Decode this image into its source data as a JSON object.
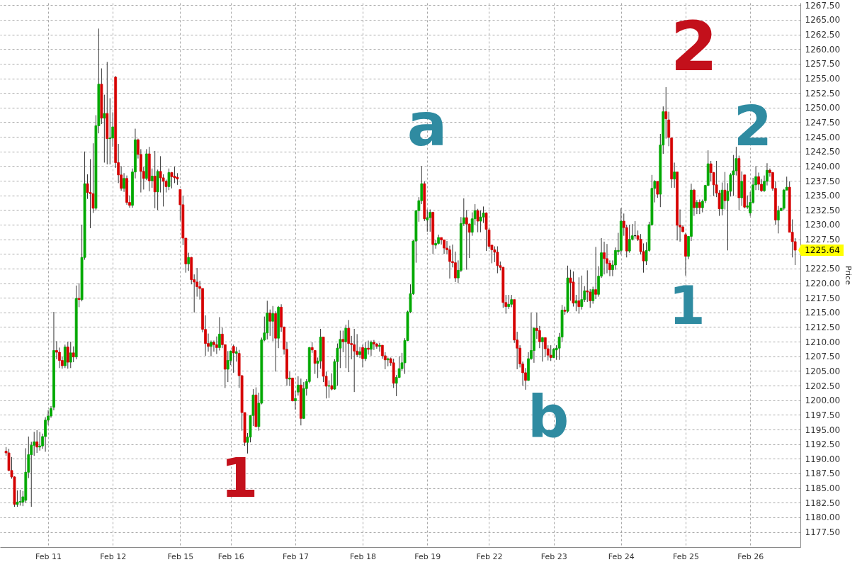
{
  "chart_data": {
    "type": "candlestick",
    "ylabel": "Price",
    "ylim": [
      1174.9,
      1267.9
    ],
    "yticks": [
      {
        "value": 1177.5,
        "label": "1177.50"
      },
      {
        "value": 1180,
        "label": "1180.00"
      },
      {
        "value": 1182.5,
        "label": "1182.50"
      },
      {
        "value": 1185,
        "label": "1185.00"
      },
      {
        "value": 1187.5,
        "label": "1187.50"
      },
      {
        "value": 1190,
        "label": "1190.00"
      },
      {
        "value": 1192.5,
        "label": "1192.50"
      },
      {
        "value": 1195,
        "label": "1195.00"
      },
      {
        "value": 1197.5,
        "label": "1197.50"
      },
      {
        "value": 1200,
        "label": "1200.00"
      },
      {
        "value": 1202.5,
        "label": "1202.50"
      },
      {
        "value": 1205,
        "label": "1205.00"
      },
      {
        "value": 1207.5,
        "label": "1207.50"
      },
      {
        "value": 1210,
        "label": "1210.00"
      },
      {
        "value": 1212.5,
        "label": "1212.50"
      },
      {
        "value": 1215,
        "label": "1215.00"
      },
      {
        "value": 1217.5,
        "label": "1217.50"
      },
      {
        "value": 1220,
        "label": "1220.00"
      },
      {
        "value": 1222.5,
        "label": "1222.50"
      },
      {
        "value": 1225,
        "label": null
      },
      {
        "value": 1227.5,
        "label": "1227.50"
      },
      {
        "value": 1230,
        "label": "1230.00"
      },
      {
        "value": 1232.5,
        "label": "1232.50"
      },
      {
        "value": 1235,
        "label": "1235.00"
      },
      {
        "value": 1237.5,
        "label": "1237.50"
      },
      {
        "value": 1240,
        "label": "1240.00"
      },
      {
        "value": 1242.5,
        "label": "1242.50"
      },
      {
        "value": 1245,
        "label": "1245.00"
      },
      {
        "value": 1247.5,
        "label": "1247.50"
      },
      {
        "value": 1250,
        "label": "1250.00"
      },
      {
        "value": 1252.5,
        "label": "1252.50"
      },
      {
        "value": 1255,
        "label": "1255.00"
      },
      {
        "value": 1257.5,
        "label": "1257.50"
      },
      {
        "value": 1260,
        "label": "1260.00"
      },
      {
        "value": 1262.5,
        "label": "1262.50"
      },
      {
        "value": 1265,
        "label": "1265.00"
      },
      {
        "value": 1267.5,
        "label": "1267.50"
      }
    ],
    "grid": true,
    "categories": [
      null,
      null,
      null,
      null,
      null,
      null,
      null,
      null,
      null,
      null,
      null,
      null,
      null,
      null,
      null,
      "Feb 11",
      null,
      null,
      null,
      null,
      null,
      null,
      null,
      null,
      null,
      null,
      null,
      null,
      null,
      null,
      null,
      null,
      null,
      null,
      null,
      null,
      null,
      null,
      "Feb 12",
      null,
      null,
      null,
      null,
      null,
      null,
      null,
      null,
      null,
      null,
      null,
      null,
      null,
      null,
      null,
      null,
      null,
      null,
      null,
      null,
      null,
      null,
      null,
      "Feb 15",
      null,
      null,
      null,
      null,
      null,
      null,
      null,
      null,
      null,
      null,
      null,
      null,
      null,
      null,
      null,
      null,
      null,
      "Feb 16",
      null,
      null,
      null,
      null,
      null,
      null,
      null,
      null,
      null,
      null,
      null,
      null,
      null,
      null,
      null,
      null,
      null,
      null,
      null,
      null,
      null,
      null,
      "Feb 17",
      null,
      null,
      null,
      null,
      null,
      null,
      null,
      null,
      null,
      null,
      null,
      null,
      null,
      null,
      null,
      null,
      null,
      null,
      null,
      null,
      null,
      null,
      null,
      "Feb 18",
      null,
      null,
      null,
      null,
      null,
      null,
      null,
      null,
      null,
      null,
      null,
      null,
      null,
      null,
      null,
      null,
      null,
      null,
      null,
      null,
      null,
      null,
      "Feb 19",
      null,
      null,
      null,
      null,
      null,
      null,
      null,
      null,
      null,
      null,
      null,
      null,
      null,
      null,
      null,
      null,
      null,
      null,
      null,
      null,
      null,
      "Feb 22",
      null,
      null,
      null,
      null,
      null,
      null,
      null,
      null,
      null,
      null,
      null,
      null,
      null,
      null,
      null,
      null,
      null,
      null,
      null,
      null,
      null,
      null,
      "Feb 23",
      null,
      null,
      null,
      null,
      null,
      null,
      null,
      null,
      null,
      null,
      null,
      null,
      null,
      null,
      null,
      null,
      null,
      null,
      null,
      null,
      null,
      null,
      null,
      "Feb 24",
      null,
      null,
      null,
      null,
      null,
      null,
      null,
      null,
      null,
      null,
      null,
      null,
      null,
      null,
      null,
      null,
      null,
      null,
      null,
      null,
      null,
      null,
      "Feb 25",
      null,
      null,
      null,
      null,
      null,
      null,
      null,
      null,
      null,
      null,
      null,
      null,
      null,
      null,
      null,
      null,
      null,
      null,
      null,
      null,
      null,
      null,
      "Feb 26",
      null,
      null,
      null,
      null,
      null,
      null,
      null,
      null,
      null,
      null,
      null,
      null,
      null,
      null,
      null,
      null
    ],
    "ohlc": [
      [
        1191.3,
        1192.0,
        1190.5,
        1191.0
      ],
      [
        1191.0,
        1191.7,
        1187.9,
        1188.0
      ],
      [
        1188.0,
        1190.3,
        1186.6,
        1186.9
      ],
      [
        1186.9,
        1187.0,
        1181.8,
        1182.2
      ],
      [
        1182.2,
        1184.6,
        1181.8,
        1182.6
      ],
      [
        1182.6,
        1184.7,
        1182.0,
        1182.7
      ],
      [
        1182.6,
        1184.5,
        1181.9,
        1183.5
      ],
      [
        1182.9,
        1191.8,
        1182.5,
        1187.7
      ],
      [
        1187.7,
        1193.8,
        1186.7,
        1190.7
      ],
      [
        1190.7,
        1192.9,
        1181.8,
        1192.3
      ],
      [
        1192.3,
        1194.6,
        1190.5,
        1192.9
      ],
      [
        1192.9,
        1194.9,
        1191.0,
        1192.0
      ],
      [
        1192.0,
        1194.6,
        1191.4,
        1192.2
      ],
      [
        1192.2,
        1194.3,
        1191.7,
        1193.8
      ],
      [
        1193.8,
        1197.1,
        1191.2,
        1196.6
      ],
      [
        1196.6,
        1198.3,
        1195.8,
        1197.3
      ],
      [
        1197.3,
        1199.0,
        1197.0,
        1198.6
      ],
      [
        1198.8,
        1215.1,
        1198.3,
        1208.5
      ],
      [
        1208.5,
        1210.1,
        1207.0,
        1208.2
      ],
      [
        1208.2,
        1209.0,
        1205.5,
        1206.8
      ],
      [
        1206.8,
        1207.5,
        1205.4,
        1205.9
      ],
      [
        1205.9,
        1209.5,
        1205.5,
        1209.1
      ],
      [
        1209.1,
        1210.0,
        1205.4,
        1206.5
      ],
      [
        1206.5,
        1210.0,
        1205.5,
        1208.1
      ],
      [
        1208.1,
        1209.2,
        1206.5,
        1207.4
      ],
      [
        1207.4,
        1219.6,
        1207.0,
        1217.4
      ],
      [
        1217.4,
        1220.0,
        1215.9,
        1217.2
      ],
      [
        1217.2,
        1230.0,
        1216.9,
        1224.4
      ],
      [
        1224.4,
        1242.5,
        1224.0,
        1237.0
      ],
      [
        1237.0,
        1238.6,
        1234.4,
        1235.5
      ],
      [
        1235.5,
        1241.2,
        1229.4,
        1235.3
      ],
      [
        1235.3,
        1243.9,
        1232.0,
        1232.8
      ],
      [
        1232.8,
        1248.7,
        1232.4,
        1246.9
      ],
      [
        1246.9,
        1263.5,
        1245.6,
        1254.0
      ],
      [
        1254.0,
        1256.7,
        1247.2,
        1248.2
      ],
      [
        1248.2,
        1252.2,
        1240.6,
        1249.0
      ],
      [
        1249.0,
        1257.8,
        1240.3,
        1244.7
      ],
      [
        1244.7,
        1251.6,
        1240.3,
        1244.8
      ],
      [
        1244.8,
        1249.2,
        1243.3,
        1246.7
      ],
      [
        1255.2,
        1255.4,
        1239.7,
        1240.6
      ],
      [
        1240.6,
        1243.8,
        1237.1,
        1238.5
      ],
      [
        1238.5,
        1240.0,
        1235.8,
        1236.2
      ],
      [
        1236.2,
        1238.8,
        1235.6,
        1237.9
      ],
      [
        1237.9,
        1238.4,
        1233.4,
        1233.8
      ],
      [
        1233.8,
        1235.0,
        1232.9,
        1233.3
      ],
      [
        1233.3,
        1239.6,
        1232.9,
        1239.0
      ],
      [
        1239.0,
        1246.4,
        1237.9,
        1244.5
      ],
      [
        1244.5,
        1244.7,
        1241.3,
        1242.0
      ],
      [
        1242.0,
        1242.9,
        1235.5,
        1239.1
      ],
      [
        1239.1,
        1239.9,
        1236.0,
        1237.9
      ],
      [
        1237.9,
        1242.9,
        1237.6,
        1242.1
      ],
      [
        1242.1,
        1243.3,
        1235.7,
        1237.5
      ],
      [
        1237.5,
        1239.6,
        1236.3,
        1238.3
      ],
      [
        1238.3,
        1242.6,
        1232.8,
        1235.6
      ],
      [
        1235.6,
        1239.4,
        1232.5,
        1239.1
      ],
      [
        1239.1,
        1241.7,
        1235.5,
        1238.0
      ],
      [
        1238.0,
        1238.6,
        1233.1,
        1237.4
      ],
      [
        1237.4,
        1237.7,
        1235.5,
        1236.5
      ],
      [
        1236.5,
        1239.6,
        1235.9,
        1238.9
      ],
      [
        1238.9,
        1239.0,
        1236.2,
        1238.2
      ],
      [
        1238.3,
        1239.9,
        1237.1,
        1238.0
      ],
      [
        1238.1,
        1238.8,
        1236.8,
        1237.8
      ],
      [
        1236.0,
        1236.0,
        1230.7,
        1233.4
      ],
      [
        1233.4,
        1234.9,
        1226.5,
        1227.7
      ],
      [
        1227.7,
        1227.7,
        1221.8,
        1223.3
      ],
      [
        1223.3,
        1225.2,
        1222.1,
        1224.4
      ],
      [
        1224.4,
        1224.5,
        1219.8,
        1220.6
      ],
      [
        1220.6,
        1221.5,
        1215.0,
        1220.2
      ],
      [
        1220.2,
        1222.6,
        1217.7,
        1219.4
      ],
      [
        1219.4,
        1220.4,
        1217.2,
        1219.1
      ],
      [
        1219.1,
        1219.1,
        1211.6,
        1212.1
      ],
      [
        1212.1,
        1214.5,
        1207.6,
        1209.7
      ],
      [
        1209.7,
        1211.4,
        1208.3,
        1209.2
      ],
      [
        1209.2,
        1210.2,
        1207.5,
        1209.9
      ],
      [
        1209.9,
        1210.2,
        1208.3,
        1209.5
      ],
      [
        1209.5,
        1210.9,
        1207.9,
        1209.0
      ],
      [
        1209.0,
        1214.2,
        1208.5,
        1211.3
      ],
      [
        1211.3,
        1212.4,
        1208.9,
        1209.5
      ],
      [
        1209.5,
        1209.5,
        1202.1,
        1205.3
      ],
      [
        1205.3,
        1208.4,
        1203.1,
        1206.8
      ],
      [
        1206.8,
        1208.5,
        1206.0,
        1208.4
      ],
      [
        1209.2,
        1209.5,
        1204.7,
        1208.1
      ],
      [
        1208.0,
        1209.1,
        1206.6,
        1208.3
      ],
      [
        1208.0,
        1208.6,
        1202.1,
        1204.2
      ],
      [
        1204.2,
        1204.3,
        1194.8,
        1197.9
      ],
      [
        1197.9,
        1197.9,
        1192.2,
        1192.8
      ],
      [
        1192.8,
        1194.4,
        1190.9,
        1193.7
      ],
      [
        1193.7,
        1197.4,
        1192.8,
        1197.4
      ],
      [
        1197.4,
        1201.9,
        1195.6,
        1200.9
      ],
      [
        1200.9,
        1202.2,
        1195.4,
        1195.5
      ],
      [
        1195.5,
        1201.3,
        1194.8,
        1199.5
      ],
      [
        1199.5,
        1210.7,
        1199.3,
        1210.3
      ],
      [
        1210.3,
        1214.3,
        1210.1,
        1211.5
      ],
      [
        1211.5,
        1217.0,
        1210.4,
        1214.9
      ],
      [
        1214.9,
        1215.5,
        1211.0,
        1213.5
      ],
      [
        1213.5,
        1216.1,
        1210.1,
        1214.8
      ],
      [
        1214.8,
        1215.2,
        1204.9,
        1210.6
      ],
      [
        1210.6,
        1216.1,
        1208.9,
        1215.9
      ],
      [
        1215.9,
        1216.4,
        1211.7,
        1212.5
      ],
      [
        1212.5,
        1212.6,
        1207.8,
        1208.7
      ],
      [
        1208.7,
        1210.0,
        1202.5,
        1203.7
      ],
      [
        1203.6,
        1204.9,
        1202.5,
        1203.8
      ],
      [
        1203.8,
        1203.8,
        1199.8,
        1199.9
      ],
      [
        1199.9,
        1201.6,
        1198.4,
        1200.3
      ],
      [
        1201.4,
        1204.1,
        1200.8,
        1202.6
      ],
      [
        1202.6,
        1203.7,
        1195.7,
        1196.9
      ],
      [
        1196.9,
        1203.1,
        1196.8,
        1202.0
      ],
      [
        1202.0,
        1203.6,
        1200.8,
        1203.2
      ],
      [
        1203.2,
        1209.1,
        1202.9,
        1209.0
      ],
      [
        1209.0,
        1209.9,
        1208.1,
        1208.6
      ],
      [
        1208.5,
        1208.5,
        1204.5,
        1206.3
      ],
      [
        1206.3,
        1207.3,
        1203.8,
        1206.7
      ],
      [
        1206.7,
        1212.2,
        1205.4,
        1210.8
      ],
      [
        1210.8,
        1210.8,
        1203.1,
        1204.1
      ],
      [
        1204.1,
        1204.9,
        1200.3,
        1202.4
      ],
      [
        1202.4,
        1203.4,
        1200.4,
        1202.5
      ],
      [
        1202.5,
        1204.6,
        1201.7,
        1201.9
      ],
      [
        1201.9,
        1207.0,
        1201.8,
        1206.6
      ],
      [
        1206.6,
        1209.7,
        1202.5,
        1208.9
      ],
      [
        1208.9,
        1211.9,
        1205.5,
        1210.4
      ],
      [
        1210.4,
        1211.9,
        1208.2,
        1210.0
      ],
      [
        1210.0,
        1212.9,
        1205.5,
        1212.3
      ],
      [
        1212.3,
        1213.7,
        1204.8,
        1209.7
      ],
      [
        1209.7,
        1211.0,
        1207.0,
        1209.5
      ],
      [
        1209.5,
        1212.2,
        1201.4,
        1208.4
      ],
      [
        1208.4,
        1211.3,
        1207.4,
        1207.8
      ],
      [
        1207.8,
        1209.1,
        1207.2,
        1208.3
      ],
      [
        1209.0,
        1209.5,
        1205.6,
        1207.1
      ],
      [
        1207.1,
        1209.9,
        1206.7,
        1208.9
      ],
      [
        1208.9,
        1210.2,
        1207.8,
        1208.7
      ],
      [
        1208.7,
        1210.2,
        1207.6,
        1209.9
      ],
      [
        1209.9,
        1210.3,
        1208.6,
        1209.6
      ],
      [
        1209.6,
        1209.8,
        1208.8,
        1209.2
      ],
      [
        1209.2,
        1209.8,
        1208.3,
        1209.4
      ],
      [
        1209.4,
        1209.4,
        1207.1,
        1207.6
      ],
      [
        1207.6,
        1208.2,
        1205.3,
        1206.9
      ],
      [
        1206.9,
        1207.3,
        1205.8,
        1207.1
      ],
      [
        1207.1,
        1207.3,
        1205.9,
        1206.4
      ],
      [
        1206.4,
        1207.1,
        1202.1,
        1202.9
      ],
      [
        1202.9,
        1204.3,
        1200.7,
        1203.9
      ],
      [
        1203.9,
        1207.5,
        1203.8,
        1205.4
      ],
      [
        1205.4,
        1208.1,
        1205.0,
        1206.4
      ],
      [
        1206.4,
        1210.6,
        1204.5,
        1210.2
      ],
      [
        1210.2,
        1215.3,
        1210.1,
        1215.1
      ],
      [
        1215.1,
        1219.8,
        1214.9,
        1218.2
      ],
      [
        1218.2,
        1227.4,
        1218.0,
        1227.2
      ],
      [
        1227.2,
        1232.4,
        1223.5,
        1232.4
      ],
      [
        1232.4,
        1234.7,
        1230.5,
        1234.1
      ],
      [
        1234.1,
        1240.0,
        1233.5,
        1237.0
      ],
      [
        1237.0,
        1237.4,
        1230.6,
        1231.0
      ],
      [
        1230.8,
        1232.6,
        1228.8,
        1231.2
      ],
      [
        1231.2,
        1232.6,
        1228.8,
        1232.1
      ],
      [
        1232.1,
        1232.2,
        1225.0,
        1226.6
      ],
      [
        1226.5,
        1227.4,
        1225.9,
        1226.8
      ],
      [
        1226.8,
        1228.3,
        1226.6,
        1227.8
      ],
      [
        1227.8,
        1227.8,
        1226.6,
        1227.4
      ],
      [
        1227.4,
        1227.4,
        1225.0,
        1226.0
      ],
      [
        1226.0,
        1227.2,
        1225.0,
        1225.7
      ],
      [
        1225.7,
        1226.4,
        1220.8,
        1223.7
      ],
      [
        1223.7,
        1226.6,
        1222.7,
        1223.5
      ],
      [
        1223.5,
        1225.4,
        1220.2,
        1220.9
      ],
      [
        1220.9,
        1223.9,
        1220.0,
        1222.2
      ],
      [
        1222.2,
        1231.3,
        1221.9,
        1230.2
      ],
      [
        1230.2,
        1234.5,
        1229.8,
        1231.2
      ],
      [
        1231.2,
        1232.5,
        1222.3,
        1230.1
      ],
      [
        1230.1,
        1230.2,
        1224.3,
        1228.7
      ],
      [
        1228.7,
        1232.1,
        1228.1,
        1231.0
      ],
      [
        1231.0,
        1233.5,
        1229.9,
        1232.4
      ],
      [
        1232.4,
        1232.7,
        1228.7,
        1230.6
      ],
      [
        1230.6,
        1232.4,
        1228.7,
        1231.3
      ],
      [
        1231.3,
        1233.1,
        1230.3,
        1232.0
      ],
      [
        1232.0,
        1232.1,
        1225.5,
        1229.2
      ],
      [
        1229.1,
        1229.5,
        1225.9,
        1226.3
      ],
      [
        1226.5,
        1226.5,
        1223.4,
        1225.7
      ],
      [
        1225.7,
        1226.3,
        1223.6,
        1225.3
      ],
      [
        1225.3,
        1226.3,
        1221.7,
        1223.0
      ],
      [
        1223.0,
        1223.7,
        1222.2,
        1222.7
      ],
      [
        1222.7,
        1222.8,
        1215.8,
        1216.7
      ],
      [
        1216.7,
        1218.0,
        1214.8,
        1216.0
      ],
      [
        1216.0,
        1218.0,
        1215.6,
        1216.4
      ],
      [
        1216.4,
        1218.0,
        1215.9,
        1217.2
      ],
      [
        1217.2,
        1217.2,
        1209.8,
        1210.3
      ],
      [
        1210.3,
        1211.7,
        1205.3,
        1208.9
      ],
      [
        1208.9,
        1209.4,
        1205.6,
        1206.2
      ],
      [
        1206.2,
        1206.6,
        1202.5,
        1204.7
      ],
      [
        1204.7,
        1205.5,
        1201.8,
        1203.4
      ],
      [
        1203.4,
        1208.2,
        1203.3,
        1207.1
      ],
      [
        1207.1,
        1215.0,
        1206.9,
        1208.5
      ],
      [
        1208.5,
        1212.5,
        1206.4,
        1212.3
      ],
      [
        1212.3,
        1215.0,
        1210.5,
        1211.9
      ],
      [
        1211.9,
        1212.7,
        1208.9,
        1210.0
      ],
      [
        1210.0,
        1210.8,
        1206.6,
        1210.7
      ],
      [
        1210.7,
        1210.7,
        1207.4,
        1208.8
      ],
      [
        1208.8,
        1209.4,
        1206.8,
        1207.7
      ],
      [
        1207.7,
        1209.4,
        1206.7,
        1207.3
      ],
      [
        1207.3,
        1208.9,
        1207.2,
        1208.7
      ],
      [
        1208.6,
        1209.4,
        1206.9,
        1208.9
      ],
      [
        1208.9,
        1211.5,
        1206.9,
        1210.8
      ],
      [
        1210.8,
        1216.3,
        1210.0,
        1215.4
      ],
      [
        1215.4,
        1216.0,
        1214.6,
        1215.2
      ],
      [
        1215.2,
        1223.0,
        1214.9,
        1220.9
      ],
      [
        1220.9,
        1222.3,
        1217.0,
        1220.1
      ],
      [
        1220.2,
        1222.0,
        1216.0,
        1216.6
      ],
      [
        1216.6,
        1218.0,
        1215.2,
        1217.0
      ],
      [
        1217.0,
        1221.0,
        1214.8,
        1216.0
      ],
      [
        1216.0,
        1221.3,
        1215.5,
        1217.2
      ],
      [
        1217.2,
        1219.5,
        1216.8,
        1218.7
      ],
      [
        1218.7,
        1222.2,
        1216.8,
        1218.5
      ],
      [
        1218.5,
        1219.0,
        1215.8,
        1217.0
      ],
      [
        1217.0,
        1219.4,
        1216.5,
        1218.9
      ],
      [
        1218.9,
        1226.2,
        1217.3,
        1218.1
      ],
      [
        1218.1,
        1222.9,
        1217.7,
        1221.2
      ],
      [
        1221.2,
        1227.7,
        1220.9,
        1225.2
      ],
      [
        1225.2,
        1227.1,
        1221.5,
        1224.2
      ],
      [
        1224.2,
        1226.7,
        1221.7,
        1223.4
      ],
      [
        1223.4,
        1223.9,
        1221.2,
        1222.3
      ],
      [
        1222.3,
        1223.9,
        1221.2,
        1223.1
      ],
      [
        1223.1,
        1226.1,
        1222.3,
        1225.6
      ],
      [
        1225.4,
        1228.6,
        1224.8,
        1225.6
      ],
      [
        1225.6,
        1232.8,
        1224.9,
        1230.6
      ],
      [
        1230.6,
        1231.9,
        1228.1,
        1229.5
      ],
      [
        1229.5,
        1230.0,
        1224.4,
        1225.5
      ],
      [
        1225.5,
        1230.0,
        1225.2,
        1227.5
      ],
      [
        1227.5,
        1230.1,
        1227.3,
        1228.1
      ],
      [
        1228.1,
        1230.6,
        1227.6,
        1228.1
      ],
      [
        1228.1,
        1229.0,
        1227.2,
        1227.5
      ],
      [
        1227.5,
        1228.4,
        1224.9,
        1225.4
      ],
      [
        1225.4,
        1226.8,
        1221.8,
        1223.8
      ],
      [
        1223.8,
        1227.0,
        1223.1,
        1225.6
      ],
      [
        1225.6,
        1230.5,
        1225.4,
        1230.0
      ],
      [
        1230.0,
        1238.5,
        1229.8,
        1236.2
      ],
      [
        1236.2,
        1237.6,
        1233.8,
        1237.4
      ],
      [
        1237.4,
        1237.4,
        1234.6,
        1235.2
      ],
      [
        1235.2,
        1245.5,
        1233.0,
        1243.6
      ],
      [
        1243.6,
        1250.2,
        1242.1,
        1249.3
      ],
      [
        1249.3,
        1253.5,
        1244.7,
        1248.1
      ],
      [
        1247.9,
        1249.3,
        1243.4,
        1244.9
      ],
      [
        1244.8,
        1244.8,
        1236.3,
        1237.8
      ],
      [
        1237.8,
        1240.6,
        1236.3,
        1239.0
      ],
      [
        1239.0,
        1239.0,
        1227.3,
        1229.9
      ],
      [
        1229.9,
        1232.6,
        1227.1,
        1229.6
      ],
      [
        1229.6,
        1229.9,
        1228.7,
        1228.8
      ],
      [
        1228.3,
        1228.6,
        1221.3,
        1224.6
      ],
      [
        1224.6,
        1228.0,
        1224.1,
        1228.0
      ],
      [
        1228.0,
        1237.0,
        1227.2,
        1235.9
      ],
      [
        1235.9,
        1236.1,
        1231.5,
        1232.9
      ],
      [
        1232.9,
        1234.2,
        1231.8,
        1233.8
      ],
      [
        1233.8,
        1234.3,
        1231.8,
        1232.9
      ],
      [
        1232.9,
        1234.3,
        1232.1,
        1234.0
      ],
      [
        1234.1,
        1236.8,
        1233.7,
        1236.7
      ],
      [
        1236.7,
        1242.7,
        1236.6,
        1240.4
      ],
      [
        1240.4,
        1240.9,
        1237.4,
        1238.9
      ],
      [
        1238.9,
        1239.0,
        1234.9,
        1236.8
      ],
      [
        1236.8,
        1240.9,
        1234.7,
        1235.4
      ],
      [
        1235.4,
        1235.9,
        1231.5,
        1232.7
      ],
      [
        1232.7,
        1237.2,
        1231.6,
        1235.9
      ],
      [
        1235.9,
        1239.0,
        1232.6,
        1234.1
      ],
      [
        1234.1,
        1237.1,
        1225.6,
        1235.7
      ],
      [
        1235.7,
        1238.8,
        1234.8,
        1238.5
      ],
      [
        1238.5,
        1241.9,
        1234.9,
        1239.2
      ],
      [
        1239.2,
        1243.3,
        1238.4,
        1241.3
      ],
      [
        1241.3,
        1241.8,
        1232.5,
        1234.6
      ],
      [
        1234.6,
        1239.1,
        1233.2,
        1237.4
      ],
      [
        1238.5,
        1238.5,
        1232.8,
        1233.0
      ],
      [
        1233.0,
        1235.0,
        1232.7,
        1233.2
      ],
      [
        1232.0,
        1235.6,
        1231.5,
        1233.8
      ],
      [
        1233.8,
        1238.0,
        1233.6,
        1236.8
      ],
      [
        1236.8,
        1240.0,
        1235.9,
        1238.2
      ],
      [
        1238.2,
        1238.9,
        1235.9,
        1236.9
      ],
      [
        1236.9,
        1237.8,
        1235.6,
        1235.8
      ],
      [
        1235.8,
        1238.4,
        1235.6,
        1237.4
      ],
      [
        1237.4,
        1240.5,
        1236.7,
        1239.3
      ],
      [
        1239.3,
        1239.6,
        1238.2,
        1238.9
      ],
      [
        1238.9,
        1239.0,
        1235.8,
        1236.2
      ],
      [
        1236.2,
        1237.4,
        1230.0,
        1230.8
      ],
      [
        1230.8,
        1233.2,
        1228.5,
        1232.4
      ],
      [
        1232.4,
        1232.9,
        1232.3,
        1232.8
      ],
      [
        1232.8,
        1236.1,
        1232.5,
        1235.9
      ],
      [
        1235.9,
        1238.2,
        1235.9,
        1236.4
      ],
      [
        1236.4,
        1237.4,
        1228.7,
        1228.7
      ],
      [
        1228.7,
        1230.9,
        1224.4,
        1227.1
      ],
      [
        1227.1,
        1227.7,
        1223.1,
        1225.64
      ]
    ],
    "colors": [
      "#d50000",
      "#d50000",
      "#d50000",
      "#d50000",
      "#00a800",
      "#00a800",
      "#00a800",
      "#00a800",
      "#00a800",
      "#00a800",
      "#00a800",
      "#d50000",
      "#00a800",
      "#00a800",
      "#00a800",
      "#00a800",
      "#00a800",
      "#00a800",
      "#d50000",
      "#d50000",
      "#d50000",
      "#00a800",
      "#d50000",
      "#00a800",
      "#d50000",
      "#00a800",
      "#d50000",
      "#00a800",
      "#00a800",
      "#d50000",
      "#d50000",
      "#d50000",
      "#00a800",
      "#00a800",
      "#d50000",
      "#00a800",
      "#d50000",
      "#00a800",
      "#00a800",
      "#d50000",
      "#d50000",
      "#d50000",
      "#00a800",
      "#d50000",
      "#d50000",
      "#00a800",
      "#00a800",
      "#d50000",
      "#d50000",
      "#d50000",
      "#00a800",
      "#d50000",
      "#00a800",
      "#d50000",
      "#00a800",
      "#d50000",
      "#d50000",
      "#d50000",
      "#00a800",
      "#d50000",
      "#d50000",
      "#d50000",
      "#d50000",
      "#d50000",
      "#d50000",
      "#00a800",
      "#d50000",
      "#d50000",
      "#d50000",
      "#d50000",
      "#d50000",
      "#d50000",
      "#d50000",
      "#00a800",
      "#d50000",
      "#d50000",
      "#00a800",
      "#d50000",
      "#d50000",
      "#00a800",
      "#00a800",
      "#d50000",
      "#00a800",
      "#d50000",
      "#d50000",
      "#d50000",
      "#00a800",
      "#00a800",
      "#00a800",
      "#d50000",
      "#00a800",
      "#00a800",
      "#00a800",
      "#00a800",
      "#d50000",
      "#00a800",
      "#d50000",
      "#00a800",
      "#d50000",
      "#d50000",
      "#d50000",
      "#00a800",
      "#d50000",
      "#00a800",
      "#00a800",
      "#d50000",
      "#00a800",
      "#00a800",
      "#00a800",
      "#d50000",
      "#d50000",
      "#00a800",
      "#00a800",
      "#d50000",
      "#d50000",
      "#00a800",
      "#d50000",
      "#00a800",
      "#00a800",
      "#00a800",
      "#d50000",
      "#00a800",
      "#d50000",
      "#d50000",
      "#d50000",
      "#d50000",
      "#00a800",
      "#d50000",
      "#00a800",
      "#d50000",
      "#00a800",
      "#d50000",
      "#d50000",
      "#00a800",
      "#d50000",
      "#d50000",
      "#00a800",
      "#d50000",
      "#d50000",
      "#00a800",
      "#00a800",
      "#00a800",
      "#00a800",
      "#00a800",
      "#00a800",
      "#00a800",
      "#00a800",
      "#00a800",
      "#00a800",
      "#d50000",
      "#00a800",
      "#00a800",
      "#d50000",
      "#00a800",
      "#00a800",
      "#d50000",
      "#d50000",
      "#d50000",
      "#d50000",
      "#d50000",
      "#d50000",
      "#00a800",
      "#00a800",
      "#00a800",
      "#d50000",
      "#d50000",
      "#00a800",
      "#00a800",
      "#d50000",
      "#00a800",
      "#00a800",
      "#d50000",
      "#d50000",
      "#d50000",
      "#d50000",
      "#d50000",
      "#d50000",
      "#d50000",
      "#d50000",
      "#00a800",
      "#00a800",
      "#d50000",
      "#d50000",
      "#d50000",
      "#d50000",
      "#d50000",
      "#00a800",
      "#00a800",
      "#00a800",
      "#d50000",
      "#d50000",
      "#00a800",
      "#d50000",
      "#d50000",
      "#d50000",
      "#00a800",
      "#00a800",
      "#00a800",
      "#00a800",
      "#d50000",
      "#00a800",
      "#d50000",
      "#d50000",
      "#00a800",
      "#d50000",
      "#00a800",
      "#00a800",
      "#d50000",
      "#d50000",
      "#00a800",
      "#d50000",
      "#00a800",
      "#00a800",
      "#d50000",
      "#d50000",
      "#d50000",
      "#00a800",
      "#00a800",
      "#00a800",
      "#00a800",
      "#d50000",
      "#d50000",
      "#00a800",
      "#00a800",
      "#000000",
      "#d50000",
      "#d50000",
      "#d50000",
      "#00a800",
      "#00a800",
      "#00a800",
      "#00a800",
      "#d50000",
      "#00a800",
      "#00a800",
      "#d50000",
      "#d50000",
      "#d50000",
      "#00a800",
      "#d50000",
      "#d50000",
      "#d50000",
      "#d50000",
      "#00a800",
      "#00a800",
      "#d50000",
      "#00a800",
      "#d50000",
      "#00a800",
      "#00a800",
      "#00a800",
      "#d50000",
      "#d50000",
      "#d50000",
      "#d50000",
      "#00a800",
      "#d50000",
      "#00a800",
      "#00a800",
      "#00a800",
      "#00a800",
      "#d50000",
      "#00a800",
      "#d50000",
      "#00a800",
      "#00a800",
      "#00a800",
      "#00a800",
      "#d50000",
      "#d50000",
      "#00a800",
      "#00a800",
      "#d50000",
      "#d50000",
      "#d50000",
      "#00a800",
      "#00a800",
      "#00a800",
      "#00a800",
      "#d50000",
      "#d50000",
      "#d50000"
    ],
    "annotations": [
      "1",
      "a",
      "b",
      "1",
      "2",
      "2",
      "1225.64"
    ]
  }
}
